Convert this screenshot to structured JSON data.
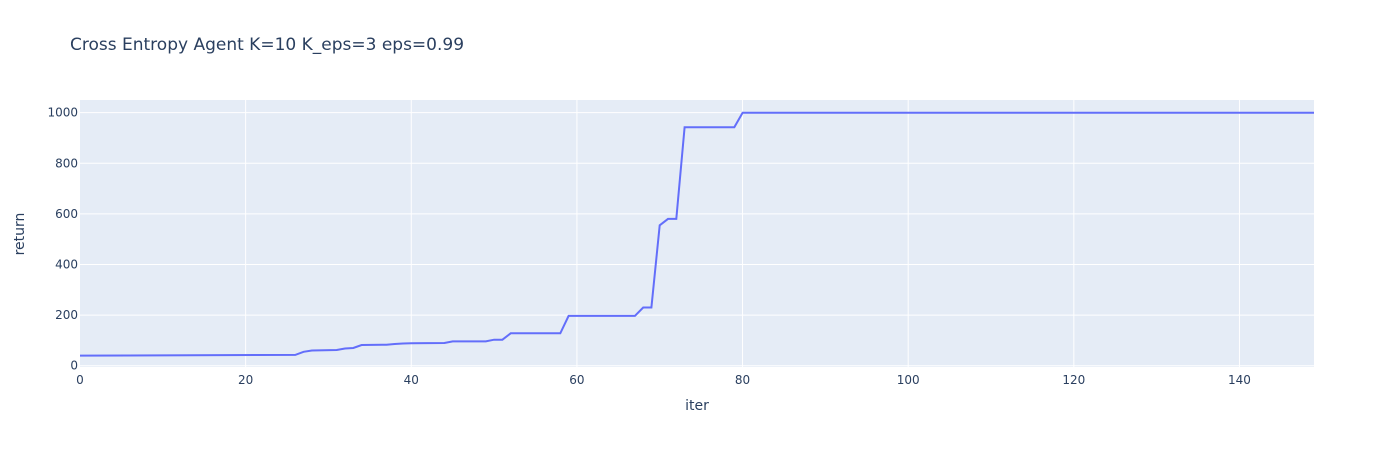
{
  "chart_data": {
    "type": "line",
    "title": "Cross Entropy Agent K=10 K_eps=3 eps=0.99",
    "xlabel": "iter",
    "ylabel": "return",
    "xlim": [
      0,
      149
    ],
    "ylim": [
      -5,
      1050
    ],
    "xticks": [
      0,
      20,
      40,
      60,
      80,
      100,
      120,
      140
    ],
    "yticks": [
      0,
      200,
      400,
      600,
      800,
      1000
    ],
    "grid": true,
    "background_color": "#e5ecf6",
    "grid_color": "#ffffff",
    "line_color": "#636efa",
    "series": [
      {
        "x": [
          0,
          26,
          27,
          28,
          31,
          32,
          33,
          34,
          37,
          38,
          39,
          40,
          44,
          45,
          49,
          50,
          51,
          52,
          58,
          59,
          67,
          68,
          69,
          70,
          71,
          72,
          73,
          74,
          79,
          80,
          149
        ],
        "y": [
          40,
          43,
          55,
          60,
          62,
          68,
          70,
          82,
          83,
          86,
          88,
          89,
          90,
          96,
          96,
          103,
          103,
          128,
          128,
          197,
          197,
          230,
          230,
          555,
          580,
          580,
          942,
          942,
          942,
          1000,
          1000
        ]
      }
    ]
  }
}
